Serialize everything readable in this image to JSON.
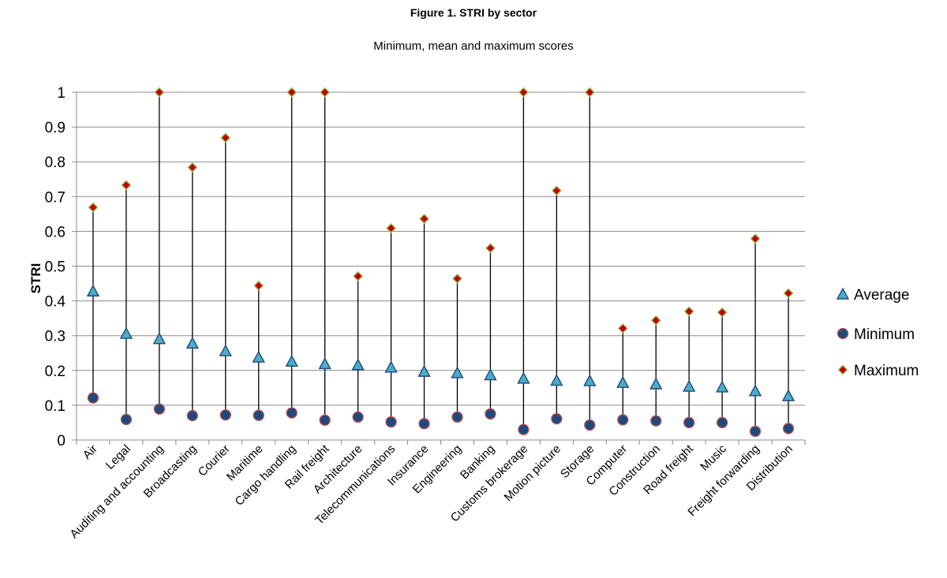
{
  "chart_data": {
    "type": "scatter",
    "title": "Figure 1. STRI by sector",
    "subtitle": "Minimum, mean and maximum scores",
    "xlabel": "",
    "ylabel": "STRI",
    "ylim": [
      0,
      1
    ],
    "yticks": [
      "0",
      "0.1",
      "0.2",
      "0.3",
      "0.4",
      "0.5",
      "0.6",
      "0.7",
      "0.8",
      "0.9",
      "1"
    ],
    "grid": true,
    "legend_position": "right",
    "categories": [
      "Air",
      "Legal",
      "Auditing and accounting",
      "Broadcasting",
      "Courier",
      "Maritime",
      "Cargo handling",
      "Rail freight",
      "Architecture",
      "Telecommunications",
      "Insurance",
      "Engineering",
      "Banking",
      "Customs brokerage",
      "Motion picture",
      "Storage",
      "Computer",
      "Construction",
      "Road freight",
      "Music",
      "Freight forwarding",
      "Distribution"
    ],
    "series": [
      {
        "name": "Average",
        "marker": "triangle",
        "color": "#4bacc6",
        "edge": "#1f497d",
        "values": [
          0.428,
          0.306,
          0.291,
          0.278,
          0.256,
          0.238,
          0.226,
          0.219,
          0.216,
          0.209,
          0.197,
          0.193,
          0.187,
          0.177,
          0.171,
          0.17,
          0.165,
          0.161,
          0.154,
          0.152,
          0.141,
          0.127
        ]
      },
      {
        "name": "Minimum",
        "marker": "circle",
        "color": "#1f497d",
        "edge": "#c0504d",
        "values": [
          0.121,
          0.059,
          0.089,
          0.07,
          0.072,
          0.071,
          0.078,
          0.057,
          0.066,
          0.052,
          0.047,
          0.066,
          0.075,
          0.03,
          0.061,
          0.043,
          0.058,
          0.055,
          0.05,
          0.05,
          0.025,
          0.033
        ]
      },
      {
        "name": "Maximum",
        "marker": "diamond",
        "color": "#c00000",
        "edge": "#9bbb59",
        "values": [
          0.669,
          0.733,
          1.0,
          0.784,
          0.869,
          0.444,
          1.0,
          1.0,
          0.471,
          0.609,
          0.636,
          0.464,
          0.552,
          1.0,
          0.717,
          1.0,
          0.321,
          0.344,
          0.37,
          0.367,
          0.579,
          0.422
        ]
      }
    ]
  }
}
